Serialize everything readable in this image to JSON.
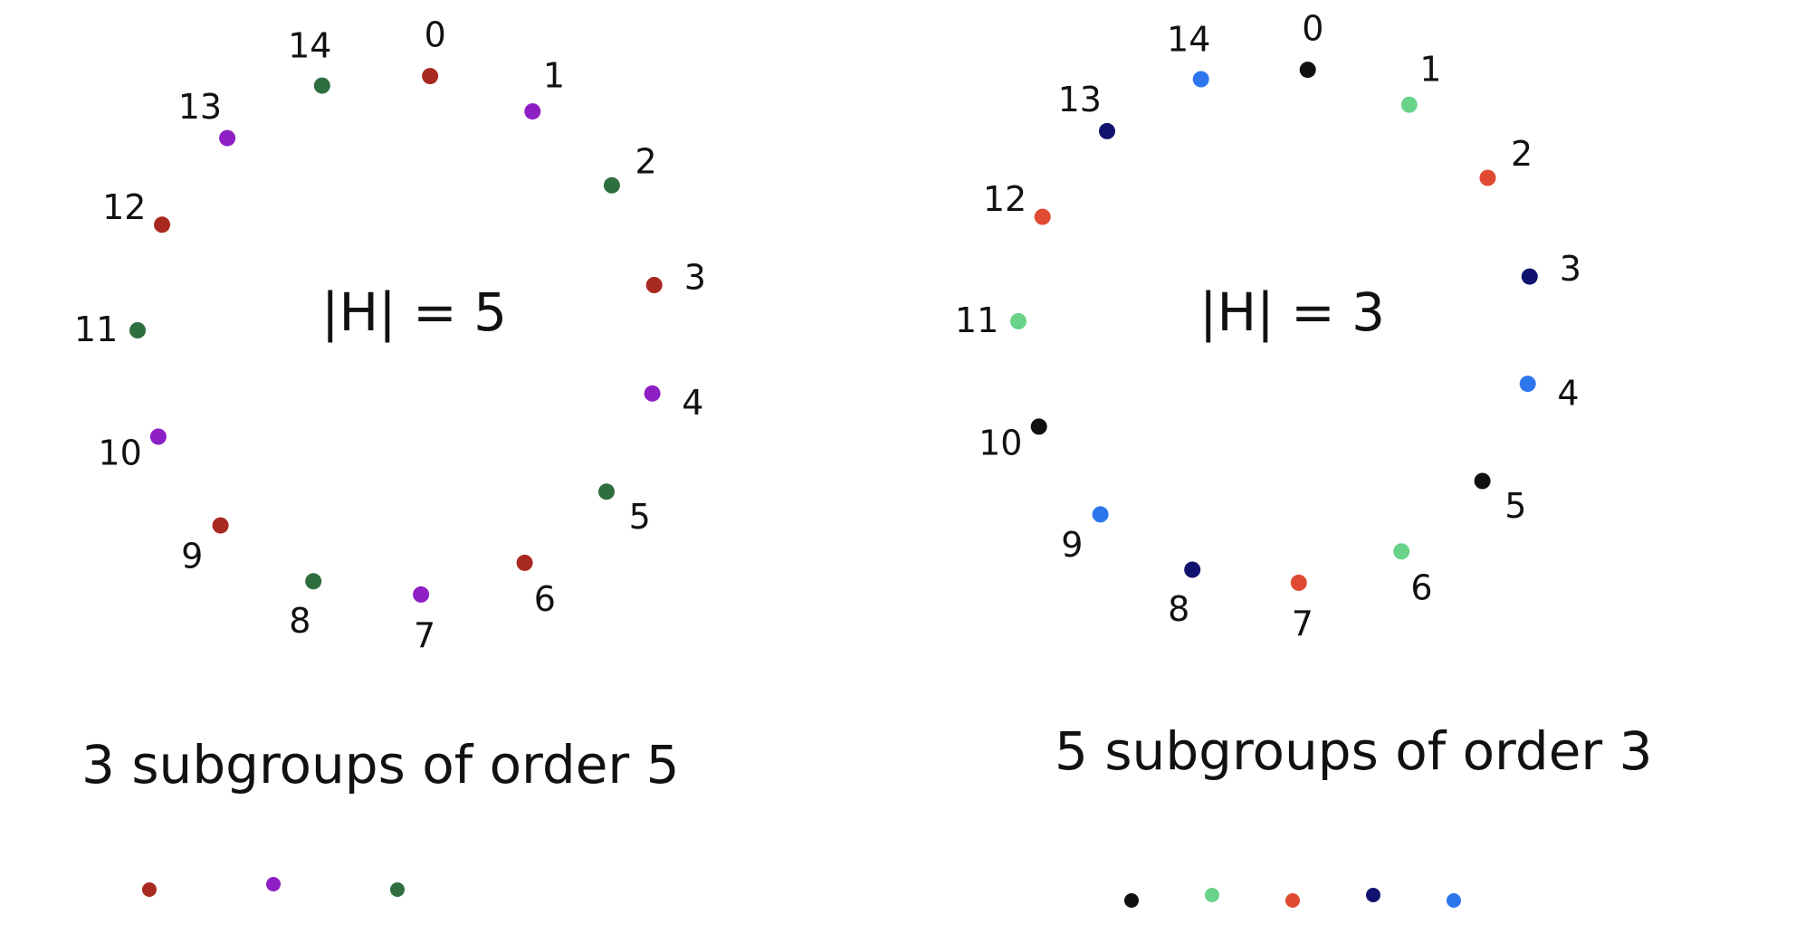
{
  "colors": {
    "dark_red": "#a8291f",
    "purple": "#8e1fc4",
    "dark_green": "#2f6e3f",
    "black": "#111111",
    "light_green": "#69d38a",
    "orange_red": "#e04a33",
    "navy": "#10136e",
    "blue": "#2e76ee"
  },
  "diagrams": [
    {
      "id": "left",
      "center_label": "|H| = 5",
      "points": [
        {
          "label": "0",
          "color": "dark_red"
        },
        {
          "label": "1",
          "color": "purple"
        },
        {
          "label": "2",
          "color": "dark_green"
        },
        {
          "label": "3",
          "color": "dark_red"
        },
        {
          "label": "4",
          "color": "purple"
        },
        {
          "label": "5",
          "color": "dark_green"
        },
        {
          "label": "6",
          "color": "dark_red"
        },
        {
          "label": "7",
          "color": "purple"
        },
        {
          "label": "8",
          "color": "dark_green"
        },
        {
          "label": "9",
          "color": "dark_red"
        },
        {
          "label": "10",
          "color": "purple"
        },
        {
          "label": "11",
          "color": "dark_green"
        },
        {
          "label": "12",
          "color": "dark_red"
        },
        {
          "label": "13",
          "color": "purple"
        },
        {
          "label": "14",
          "color": "dark_green"
        }
      ],
      "caption": "3 subgroups of order 5",
      "legend": [
        "dark_red",
        "purple",
        "dark_green"
      ]
    },
    {
      "id": "right",
      "center_label": "|H| = 3",
      "points": [
        {
          "label": "0",
          "color": "black"
        },
        {
          "label": "1",
          "color": "light_green"
        },
        {
          "label": "2",
          "color": "orange_red"
        },
        {
          "label": "3",
          "color": "navy"
        },
        {
          "label": "4",
          "color": "blue"
        },
        {
          "label": "5",
          "color": "black"
        },
        {
          "label": "6",
          "color": "light_green"
        },
        {
          "label": "7",
          "color": "orange_red"
        },
        {
          "label": "8",
          "color": "navy"
        },
        {
          "label": "9",
          "color": "blue"
        },
        {
          "label": "10",
          "color": "black"
        },
        {
          "label": "11",
          "color": "light_green"
        },
        {
          "label": "12",
          "color": "orange_red"
        },
        {
          "label": "13",
          "color": "navy"
        },
        {
          "label": "14",
          "color": "blue"
        }
      ],
      "caption": "5 subgroups of order 3",
      "legend": [
        "black",
        "light_green",
        "orange_red",
        "navy",
        "blue"
      ]
    }
  ]
}
